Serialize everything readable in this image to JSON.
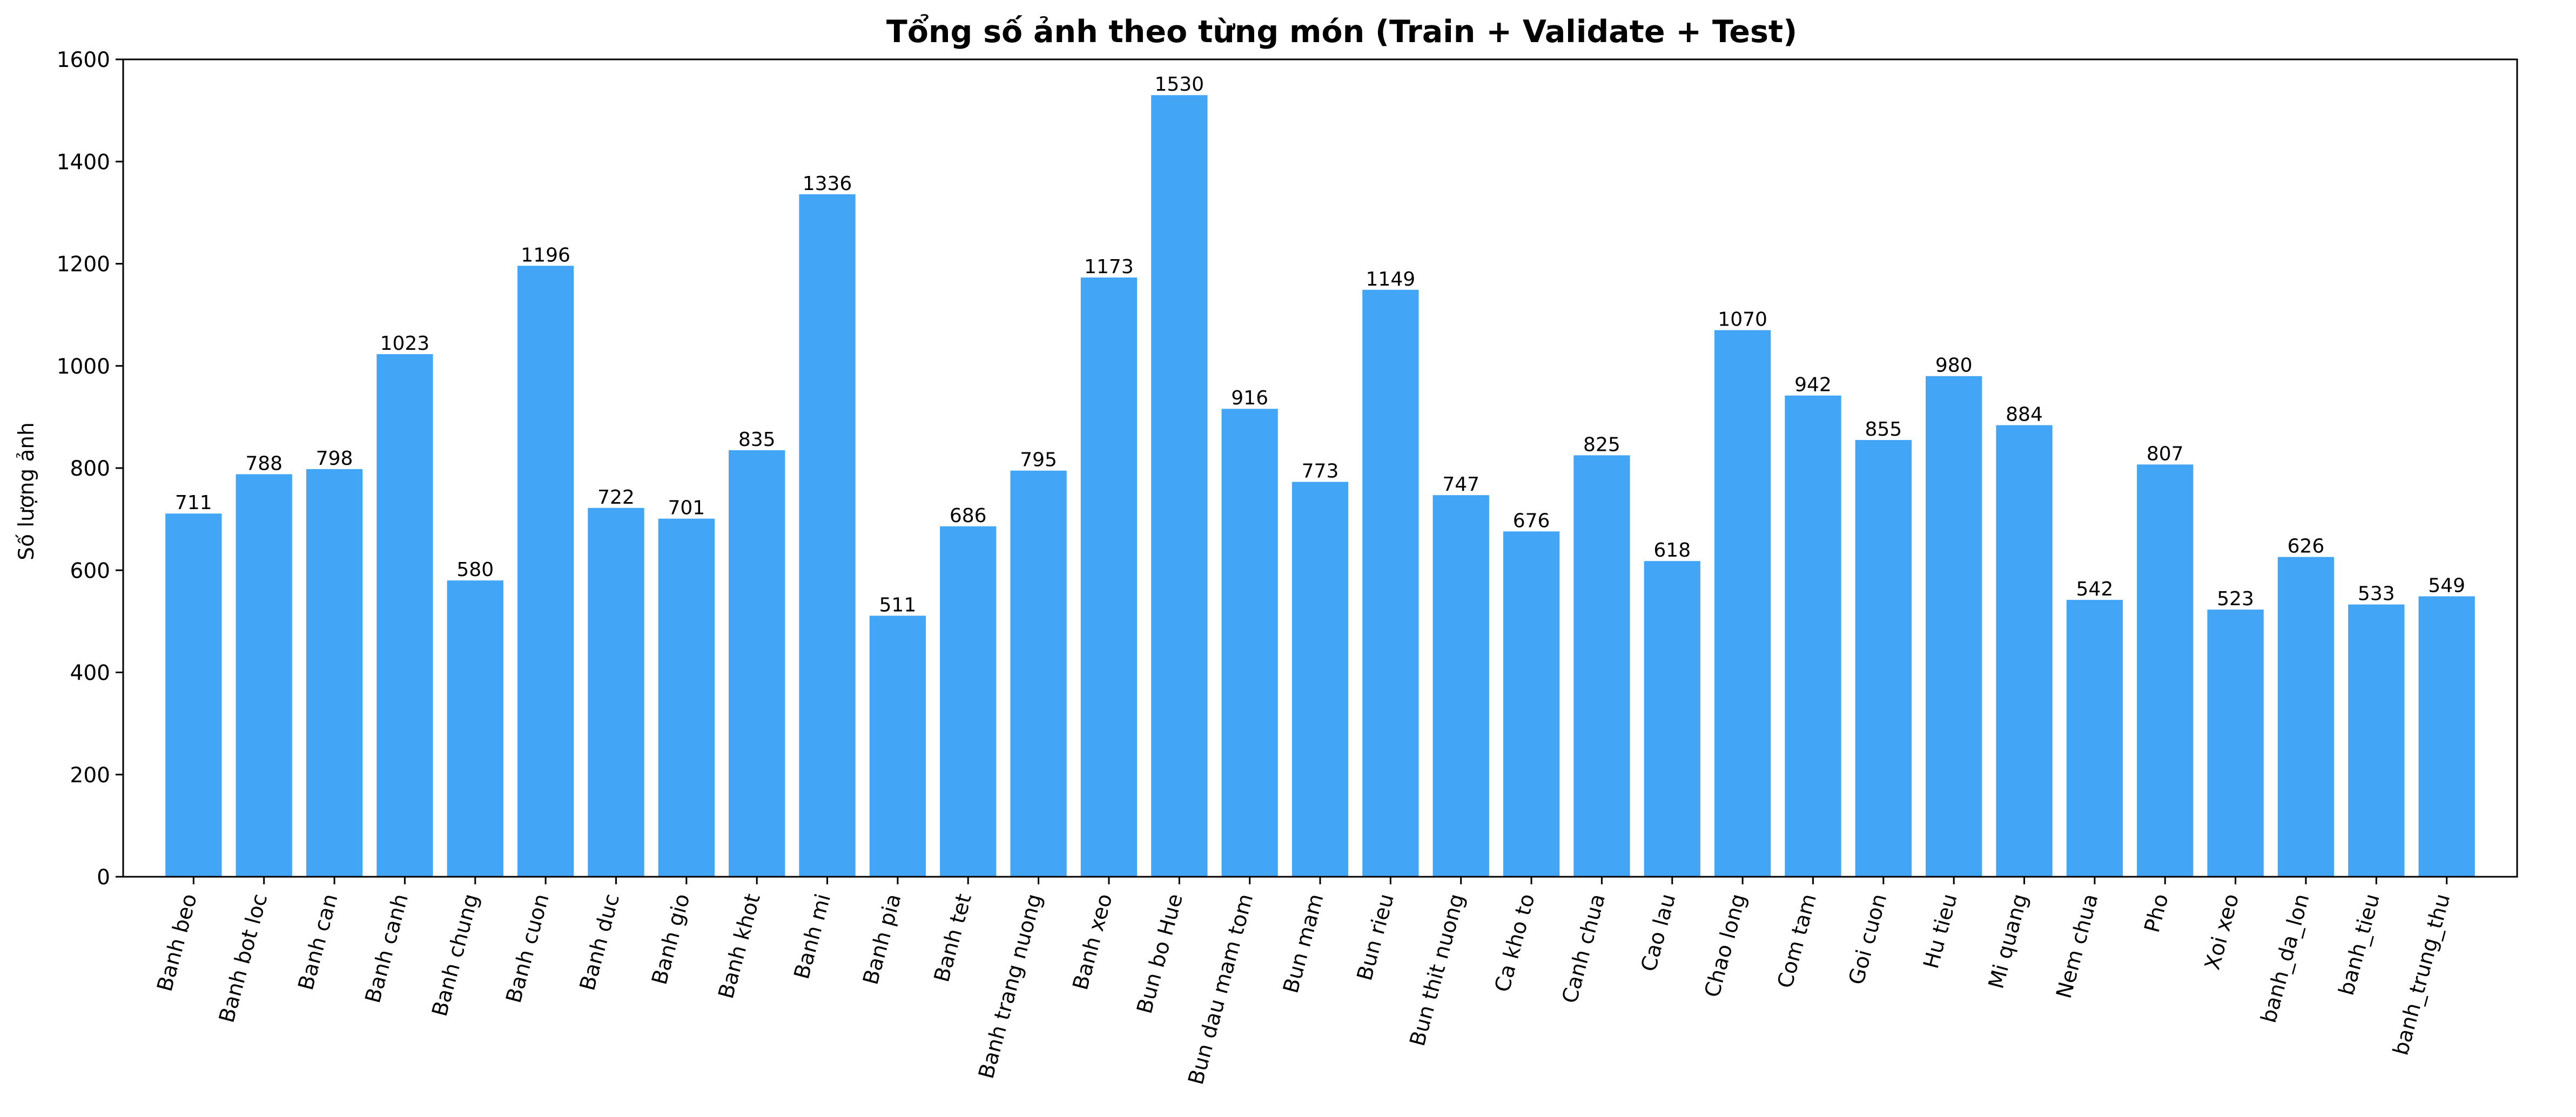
{
  "chart_data": {
    "type": "bar",
    "title": "Tổng số ảnh theo từng món (Train + Validate + Test)",
    "xlabel": "",
    "ylabel": "Số lượng ảnh",
    "ylim": [
      0,
      1600
    ],
    "yticks": [
      0,
      200,
      400,
      600,
      800,
      1000,
      1200,
      1400,
      1600
    ],
    "grid": false,
    "bar_color": "#42a5f5",
    "categories": [
      "Banh beo",
      "Banh bot loc",
      "Banh can",
      "Banh canh",
      "Banh chung",
      "Banh cuon",
      "Banh duc",
      "Banh gio",
      "Banh khot",
      "Banh mi",
      "Banh pia",
      "Banh tet",
      "Banh trang nuong",
      "Banh xeo",
      "Bun bo Hue",
      "Bun dau mam tom",
      "Bun mam",
      "Bun rieu",
      "Bun thit nuong",
      "Ca kho to",
      "Canh chua",
      "Cao lau",
      "Chao long",
      "Com tam",
      "Goi cuon",
      "Hu tieu",
      "Mi quang",
      "Nem chua",
      "Pho",
      "Xoi xeo",
      "banh_da_lon",
      "banh_tieu",
      "banh_trung_thu"
    ],
    "values": [
      711,
      788,
      798,
      1023,
      580,
      1196,
      722,
      701,
      835,
      1336,
      511,
      686,
      795,
      1173,
      1530,
      916,
      773,
      1149,
      747,
      676,
      825,
      618,
      1070,
      942,
      855,
      980,
      884,
      542,
      807,
      523,
      626,
      533,
      549
    ]
  }
}
